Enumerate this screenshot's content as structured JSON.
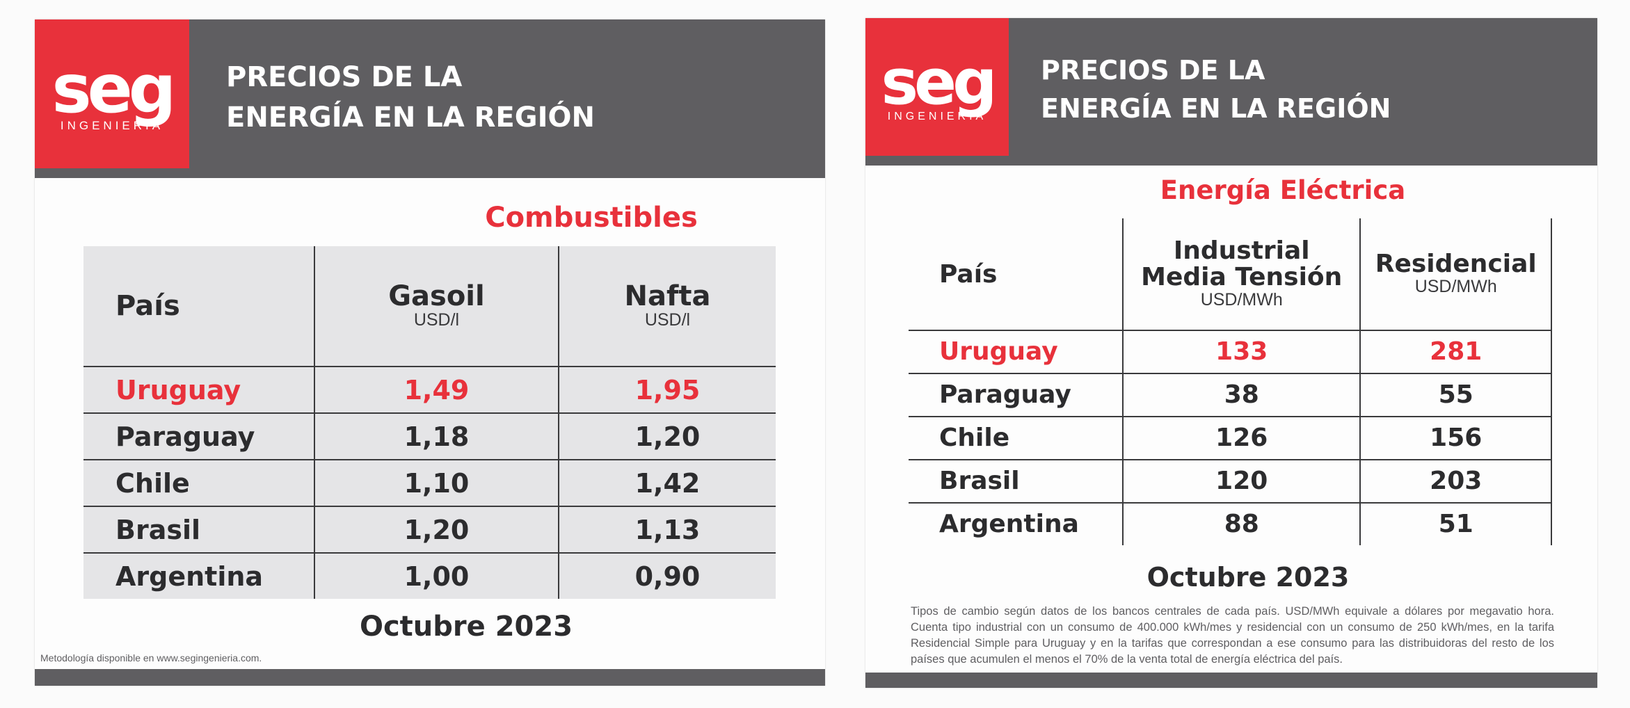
{
  "brand": {
    "logo_text": "seg",
    "logo_subtitle": "INGENIERIA",
    "red": "#e8313b",
    "header_gray": "#5f5e61",
    "table_gray": "#e5e5e7"
  },
  "header": {
    "title_line1": "PRECIOS DE LA",
    "title_line2": "ENERGÍA EN LA REGIÓN"
  },
  "fuel": {
    "section_title": "Combustibles",
    "columns": [
      {
        "label": "País",
        "unit": ""
      },
      {
        "label": "Gasoil",
        "unit": "USD/l"
      },
      {
        "label": "Nafta",
        "unit": "USD/l"
      }
    ],
    "rows": [
      {
        "country": "Uruguay",
        "gasoil": "1,49",
        "nafta": "1,95",
        "highlight": true
      },
      {
        "country": "Paraguay",
        "gasoil": "1,18",
        "nafta": "1,20",
        "highlight": false
      },
      {
        "country": "Chile",
        "gasoil": "1,10",
        "nafta": "1,42",
        "highlight": false
      },
      {
        "country": "Brasil",
        "gasoil": "1,20",
        "nafta": "1,13",
        "highlight": false
      },
      {
        "country": "Argentina",
        "gasoil": "1,00",
        "nafta": "0,90",
        "highlight": false
      }
    ],
    "month": "Octubre 2023",
    "footnote": "Metodología disponible en www.segingenieria.com."
  },
  "electric": {
    "section_title": "Energía Eléctrica",
    "columns": [
      {
        "label": "País",
        "unit": ""
      },
      {
        "label": "Industrial",
        "label2": "Media Tensión",
        "unit": "USD/MWh"
      },
      {
        "label": "Residencial",
        "unit": "USD/MWh"
      }
    ],
    "rows": [
      {
        "country": "Uruguay",
        "industrial": "133",
        "residencial": "281",
        "highlight": true
      },
      {
        "country": "Paraguay",
        "industrial": "38",
        "residencial": "55",
        "highlight": false
      },
      {
        "country": "Chile",
        "industrial": "126",
        "residencial": "156",
        "highlight": false
      },
      {
        "country": "Brasil",
        "industrial": "120",
        "residencial": "203",
        "highlight": false
      },
      {
        "country": "Argentina",
        "industrial": "88",
        "residencial": "51",
        "highlight": false
      }
    ],
    "month": "Octubre 2023",
    "footnote": "Tipos de cambio según datos de los bancos centrales de cada país. USD/MWh equivale a dólares por megavatio hora. Cuenta tipo industrial con un consumo de 400.000 kWh/mes y residencial con un consumo de 250 kWh/mes, en la tarifa Residencial Simple para Uruguay y en la tarifas que correspondan a ese consumo para las distribuidoras del resto de los países que acumulen el menos el 70% de la venta total de energía eléctrica del país."
  }
}
